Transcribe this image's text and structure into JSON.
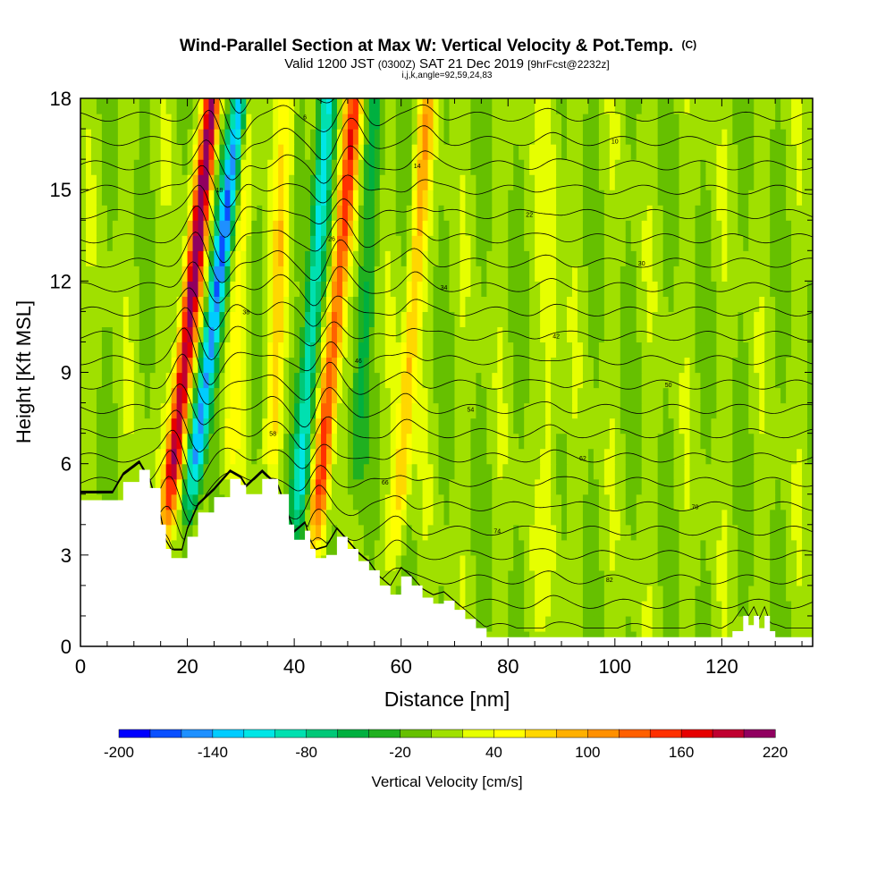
{
  "header": {
    "title": "Wind-Parallel Section at Max W: Vertical Velocity & Pot.Temp.",
    "title_mark": "(C)",
    "subtitle_lead": "Valid 1200 JST",
    "subtitle_zulu": "(0300Z)",
    "subtitle_date": "SAT 21 Dec 2019",
    "subtitle_fcst": "[9hrFcst@2232z]",
    "subtitle2": "i,j,k,angle=92,59,24,83"
  },
  "chart_data": {
    "type": "heatmap",
    "xlabel": "Distance [nm]",
    "ylabel": "Height [Kft MSL]",
    "xlim": [
      0,
      137
    ],
    "ylim": [
      0,
      18
    ],
    "x_ticks": [
      "0",
      "20",
      "40",
      "60",
      "80",
      "100",
      "120"
    ],
    "x_tick_values": [
      0,
      20,
      40,
      60,
      80,
      100,
      120
    ],
    "y_ticks": [
      "0",
      "3",
      "6",
      "9",
      "12",
      "15",
      "18"
    ],
    "y_tick_values": [
      0,
      3,
      6,
      9,
      12,
      15,
      18
    ],
    "grid": false,
    "colorbar": {
      "label": "Vertical Velocity [cm/s]",
      "min": -200,
      "max": 220,
      "step": 20,
      "tick_labels": [
        "-200",
        "-140",
        "-80",
        "-20",
        "40",
        "100",
        "160",
        "220"
      ],
      "tick_values": [
        -200,
        -140,
        -80,
        -20,
        40,
        100,
        160,
        220
      ],
      "colors": [
        "#0000ff",
        "#0a50ff",
        "#1e90ff",
        "#00ccff",
        "#00e6e6",
        "#00e0b0",
        "#00c878",
        "#00b040",
        "#20b020",
        "#66c000",
        "#a0e000",
        "#e6ff00",
        "#ffff00",
        "#ffd700",
        "#ffb000",
        "#ff9000",
        "#ff6000",
        "#ff3000",
        "#e60000",
        "#c00030",
        "#900060"
      ]
    },
    "terrain_kft": [
      [
        0,
        4.8
      ],
      [
        6,
        4.8
      ],
      [
        8,
        5.4
      ],
      [
        11,
        5.8
      ],
      [
        13,
        5.2
      ],
      [
        15,
        4.0
      ],
      [
        16,
        3.2
      ],
      [
        17,
        2.9
      ],
      [
        19,
        2.9
      ],
      [
        20,
        3.6
      ],
      [
        22,
        4.4
      ],
      [
        25,
        4.9
      ],
      [
        28,
        5.5
      ],
      [
        30,
        5.3
      ],
      [
        31,
        5.0
      ],
      [
        34,
        5.5
      ],
      [
        37,
        5.0
      ],
      [
        39,
        4.0
      ],
      [
        40,
        3.5
      ],
      [
        42,
        3.8
      ],
      [
        43,
        3.2
      ],
      [
        44,
        2.9
      ],
      [
        46,
        3.0
      ],
      [
        48,
        3.6
      ],
      [
        50,
        3.2
      ],
      [
        52,
        2.8
      ],
      [
        54,
        2.5
      ],
      [
        56,
        2.0
      ],
      [
        58,
        1.7
      ],
      [
        60,
        2.3
      ],
      [
        62,
        2.0
      ],
      [
        64,
        1.6
      ],
      [
        66,
        1.4
      ],
      [
        68,
        1.5
      ],
      [
        70,
        1.2
      ],
      [
        72,
        0.9
      ],
      [
        74,
        0.6
      ],
      [
        76,
        0.3
      ],
      [
        120,
        0.3
      ],
      [
        122,
        0.5
      ],
      [
        124,
        1.0
      ],
      [
        125,
        0.7
      ],
      [
        126,
        1.0
      ],
      [
        127,
        0.6
      ],
      [
        128,
        1.0
      ],
      [
        129,
        0.5
      ],
      [
        130,
        0.3
      ],
      [
        137,
        0.3
      ]
    ],
    "updrafts": [
      {
        "x": 16.3,
        "base": 4.0,
        "top": 18,
        "tilt": 0.6,
        "peak_cm_s": 210
      },
      {
        "x": 27.5,
        "base": 5.0,
        "top": 18,
        "tilt": 0.3,
        "peak_cm_s": 40
      },
      {
        "x": 35.5,
        "base": 5.2,
        "top": 18,
        "tilt": 0.25,
        "peak_cm_s": 60
      },
      {
        "x": 43.8,
        "base": 3.0,
        "top": 18,
        "tilt": 0.5,
        "peak_cm_s": 140
      },
      {
        "x": 59.0,
        "base": 3.0,
        "top": 18,
        "tilt": 0.4,
        "peak_cm_s": 80
      },
      {
        "x": 88.0,
        "base": 1.0,
        "top": 18,
        "tilt": 0.0,
        "peak_cm_s": 30
      }
    ],
    "downdrafts": [
      {
        "x": 20.5,
        "base": 4.5,
        "top": 18,
        "tilt": 0.7,
        "peak_cm_s": -160
      },
      {
        "x": 40.5,
        "base": 3.5,
        "top": 18,
        "tilt": 0.4,
        "peak_cm_s": -110
      },
      {
        "x": 51.0,
        "base": 4.0,
        "top": 18,
        "tilt": 0.3,
        "peak_cm_s": -40
      }
    ],
    "theta_contour_labels": [
      "90",
      "86",
      "82",
      "78",
      "74",
      "70",
      "66",
      "62",
      "58",
      "54",
      "50",
      "46",
      "42",
      "38",
      "34",
      "30",
      "26",
      "22",
      "18",
      "14",
      "10",
      "6",
      "2"
    ],
    "theta_contour_levels": [
      90,
      86,
      82,
      78,
      74,
      70,
      66,
      62,
      58,
      54,
      50,
      46,
      42,
      38,
      34,
      30,
      26,
      22,
      18,
      14,
      10,
      6,
      2
    ]
  }
}
